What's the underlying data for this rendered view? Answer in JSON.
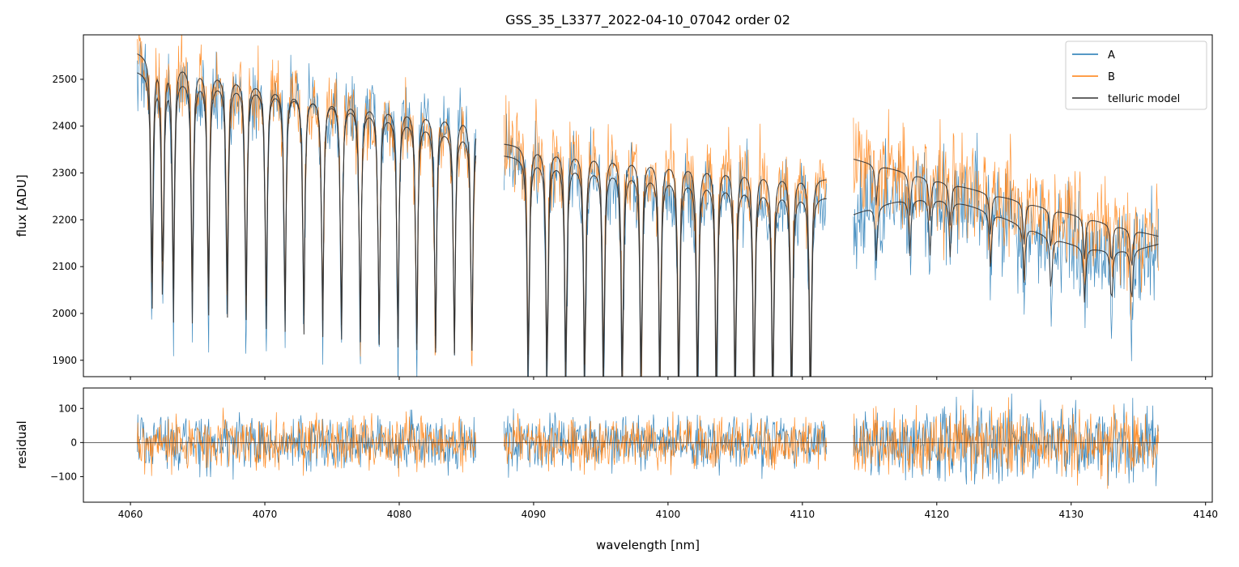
{
  "chart_data": {
    "type": "line",
    "title": "GSS_35_L3377_2022-04-10_07042  order 02",
    "xlabel": "wavelength [nm]",
    "xlim": [
      4056.5,
      4140.5
    ],
    "x_ticks": [
      "4060",
      "4070",
      "4080",
      "4090",
      "4100",
      "4110",
      "4120",
      "4130",
      "4140"
    ],
    "grid": false,
    "legend_position": "top-right",
    "colors": {
      "A": "#1f77b4",
      "B": "#ff7f0e",
      "telluric model": "#333333"
    },
    "panels": [
      {
        "name": "spectrum",
        "ylabel": "flux [ADU]",
        "ylim": [
          1865,
          2595
        ],
        "y_ticks": [
          "1900",
          "2000",
          "2100",
          "2200",
          "2300",
          "2400",
          "2500"
        ],
        "segments": [
          {
            "x_range": [
              4060.5,
              4085.7
            ],
            "continuum_A": [
              2520,
              2420
            ],
            "continuum_B": [
              2560,
              2380
            ],
            "noise": 40
          },
          {
            "x_range": [
              4087.8,
              4111.8
            ],
            "continuum_A": [
              2340,
              2250
            ],
            "continuum_B": [
              2365,
              2290
            ],
            "noise": 45
          },
          {
            "x_range": [
              4113.8,
              4136.5
            ],
            "continuum_A": [
              2211,
              2260
            ],
            "continuum_B": [
              2330,
              2165
            ],
            "noise": 55
          }
        ],
        "telluric_lines_nm": [
          4061.6,
          4062.4,
          4063.2,
          4064.6,
          4065.8,
          4067.2,
          4068.6,
          4070.1,
          4071.5,
          4072.9,
          4074.3,
          4075.7,
          4077.1,
          4078.5,
          4079.9,
          4081.3,
          4082.7,
          4084.1,
          4085.4,
          4089.6,
          4091.0,
          4092.4,
          4093.8,
          4095.2,
          4096.6,
          4098.0,
          4099.4,
          4100.8,
          4102.2,
          4103.6,
          4105.0,
          4106.4,
          4107.8,
          4109.2,
          4110.6,
          4115.5,
          4118.0,
          4119.5,
          4121.0,
          4124.0,
          4126.5,
          4128.5,
          4131.0,
          4133.0,
          4134.5
        ],
        "series": [
          {
            "name": "A"
          },
          {
            "name": "B"
          },
          {
            "name": "telluric model"
          }
        ]
      },
      {
        "name": "residual",
        "ylabel": "residual",
        "ylim": [
          -175,
          160
        ],
        "y_ticks": [
          "−100",
          "0",
          "100"
        ],
        "y_tick_values": [
          -100,
          0,
          100
        ],
        "zero_line": true
      }
    ]
  }
}
